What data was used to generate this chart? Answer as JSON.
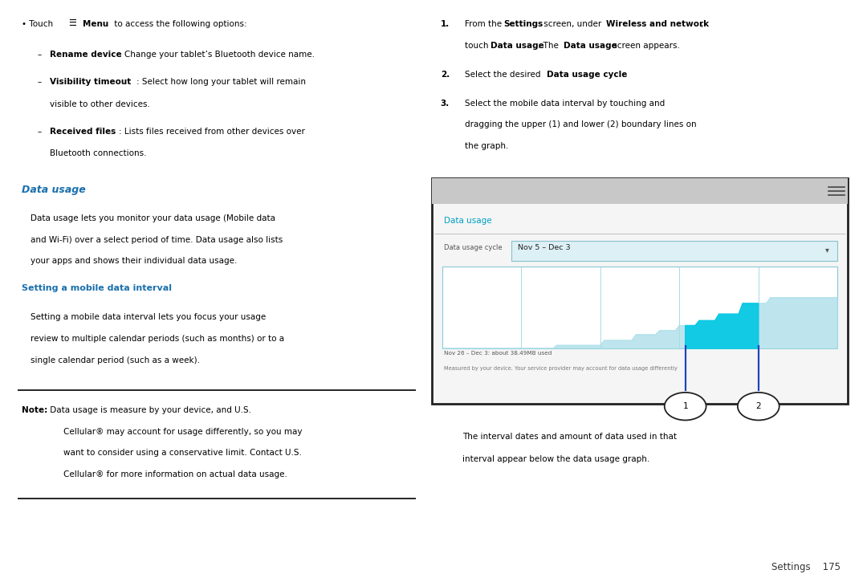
{
  "bg_color": "#ffffff",
  "blue_heading_color": "#1a6fad",
  "teal_color": "#00a0c4",
  "text_color": "#000000",
  "gray_text_color": "#555555",
  "left_content": {
    "sub_bullets": [
      {
        "bold": "Rename device",
        "rest": ": Change your tablet’s Bluetooth device name."
      },
      {
        "bold": "Visibility timeout",
        "rest": ": Select how long your tablet will remain visible to other devices.",
        "cont": "visible to other devices."
      },
      {
        "bold": "Received files",
        "rest": ": Lists files received from other devices over Bluetooth connections.",
        "cont": "Bluetooth connections."
      }
    ],
    "section_heading": "Data usage",
    "subsection_heading": "Setting a mobile data interval"
  },
  "right_content": {
    "screen": {
      "title": "Data usage",
      "cycle_label": "Data usage cycle",
      "cycle_value": "Nov 5 – Dec 3",
      "footer1": "Nov 26 – Dec 3: about 38.49MB used",
      "footer2": "Measured by your device. Your service provider may account for data usage differently"
    },
    "caption1": "The interval dates and amount of data used in that",
    "caption2": "interval appear below the data usage graph.",
    "footer": "Settings    175"
  }
}
